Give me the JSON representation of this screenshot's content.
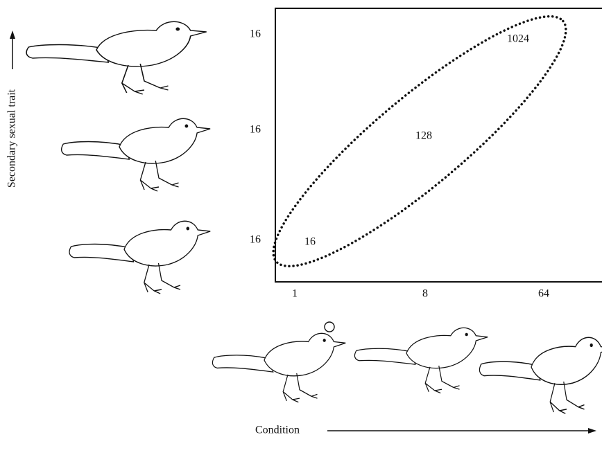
{
  "axes": {
    "y_label": "Secondary sexual trait",
    "x_label": "Condition"
  },
  "row_labels": [
    "16",
    "16",
    "16"
  ],
  "column_labels": [
    "1",
    "8",
    "64"
  ],
  "ellipse_labels": [
    "16",
    "128",
    "1024"
  ]
}
